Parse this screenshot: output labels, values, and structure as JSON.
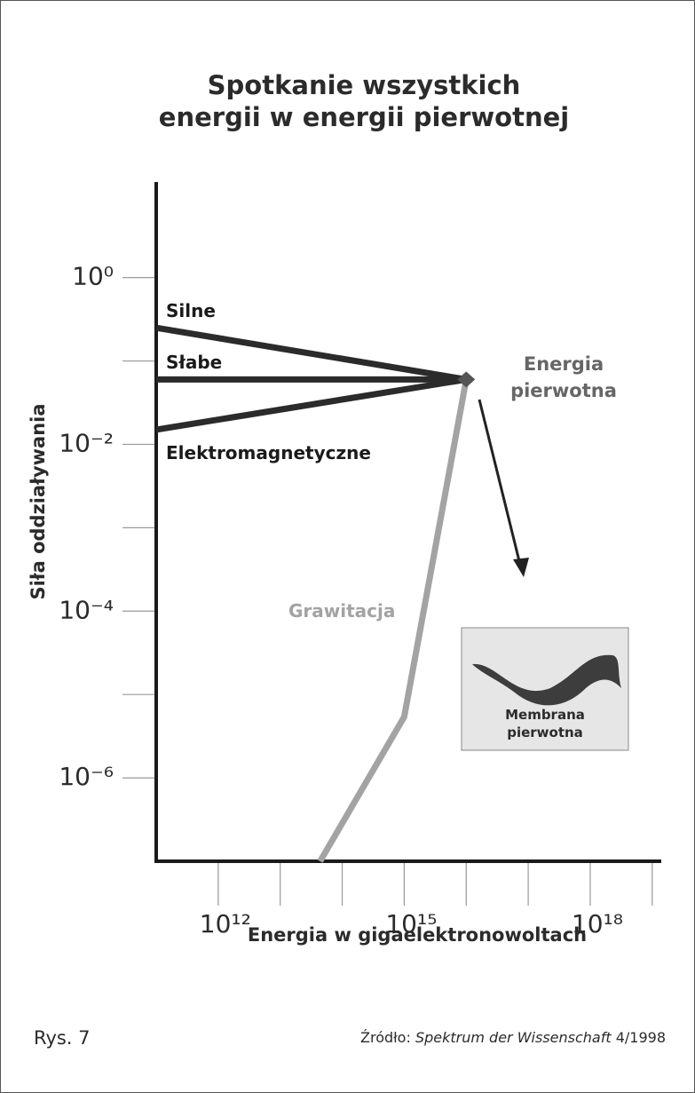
{
  "chart_data": {
    "type": "line",
    "title": [
      "Spotkanie wszystkich",
      "energii w energii pierwotnej"
    ],
    "xlabel": "Energia w gigaelektronowoltach",
    "ylabel": "Siła oddziaływania",
    "xscale": "log",
    "yscale": "log",
    "xlim": [
      100000000000.0,
      1.4e+19
    ],
    "ylim": [
      1e-07,
      14
    ],
    "xticks": [
      {
        "value": 1000000000000.0,
        "label": "10¹²"
      },
      {
        "value": 1000000000000000.0,
        "label": "10¹⁵"
      },
      {
        "value": 1e+18,
        "label": "10¹⁸"
      }
    ],
    "xminor_ticks": [
      10000000000000.0,
      100000000000000.0,
      1e+16,
      1e+17,
      1e+19
    ],
    "yticks": [
      {
        "value": 1,
        "label": "10⁰"
      },
      {
        "value": 0.01,
        "label": "10⁻²"
      },
      {
        "value": 0.0001,
        "label": "10⁻⁴"
      },
      {
        "value": 1e-06,
        "label": "10⁻⁶"
      }
    ],
    "yminor_ticks": [
      0.1,
      0.001,
      1e-05
    ],
    "series": [
      {
        "name": "Silne",
        "color": "#2b2b2b",
        "x": [
          100000000000.0,
          1e+16
        ],
        "values": [
          0.25,
          0.06
        ]
      },
      {
        "name": "Słabe",
        "color": "#2b2b2b",
        "x": [
          100000000000.0,
          1e+16
        ],
        "values": [
          0.06,
          0.06
        ]
      },
      {
        "name": "Elektromagnetyczne",
        "color": "#2b2b2b",
        "x": [
          100000000000.0,
          1e+16
        ],
        "values": [
          0.015,
          0.06
        ]
      },
      {
        "name": "Grawitacja",
        "color": "#a3a3a3",
        "x": [
          44000000000000.0,
          1000000000000000.0,
          1e+16
        ],
        "values": [
          1e-07,
          5.4e-06,
          0.06
        ]
      }
    ],
    "annotation": [
      "Energia",
      "pierwotna"
    ],
    "inset": [
      "Membrana",
      "pierwotna"
    ],
    "figure_label": "Rys. 7",
    "source": {
      "prefix": "Źródło:",
      "title": "Spektrum der Wissenschaft",
      "issue": "4/1998"
    }
  }
}
